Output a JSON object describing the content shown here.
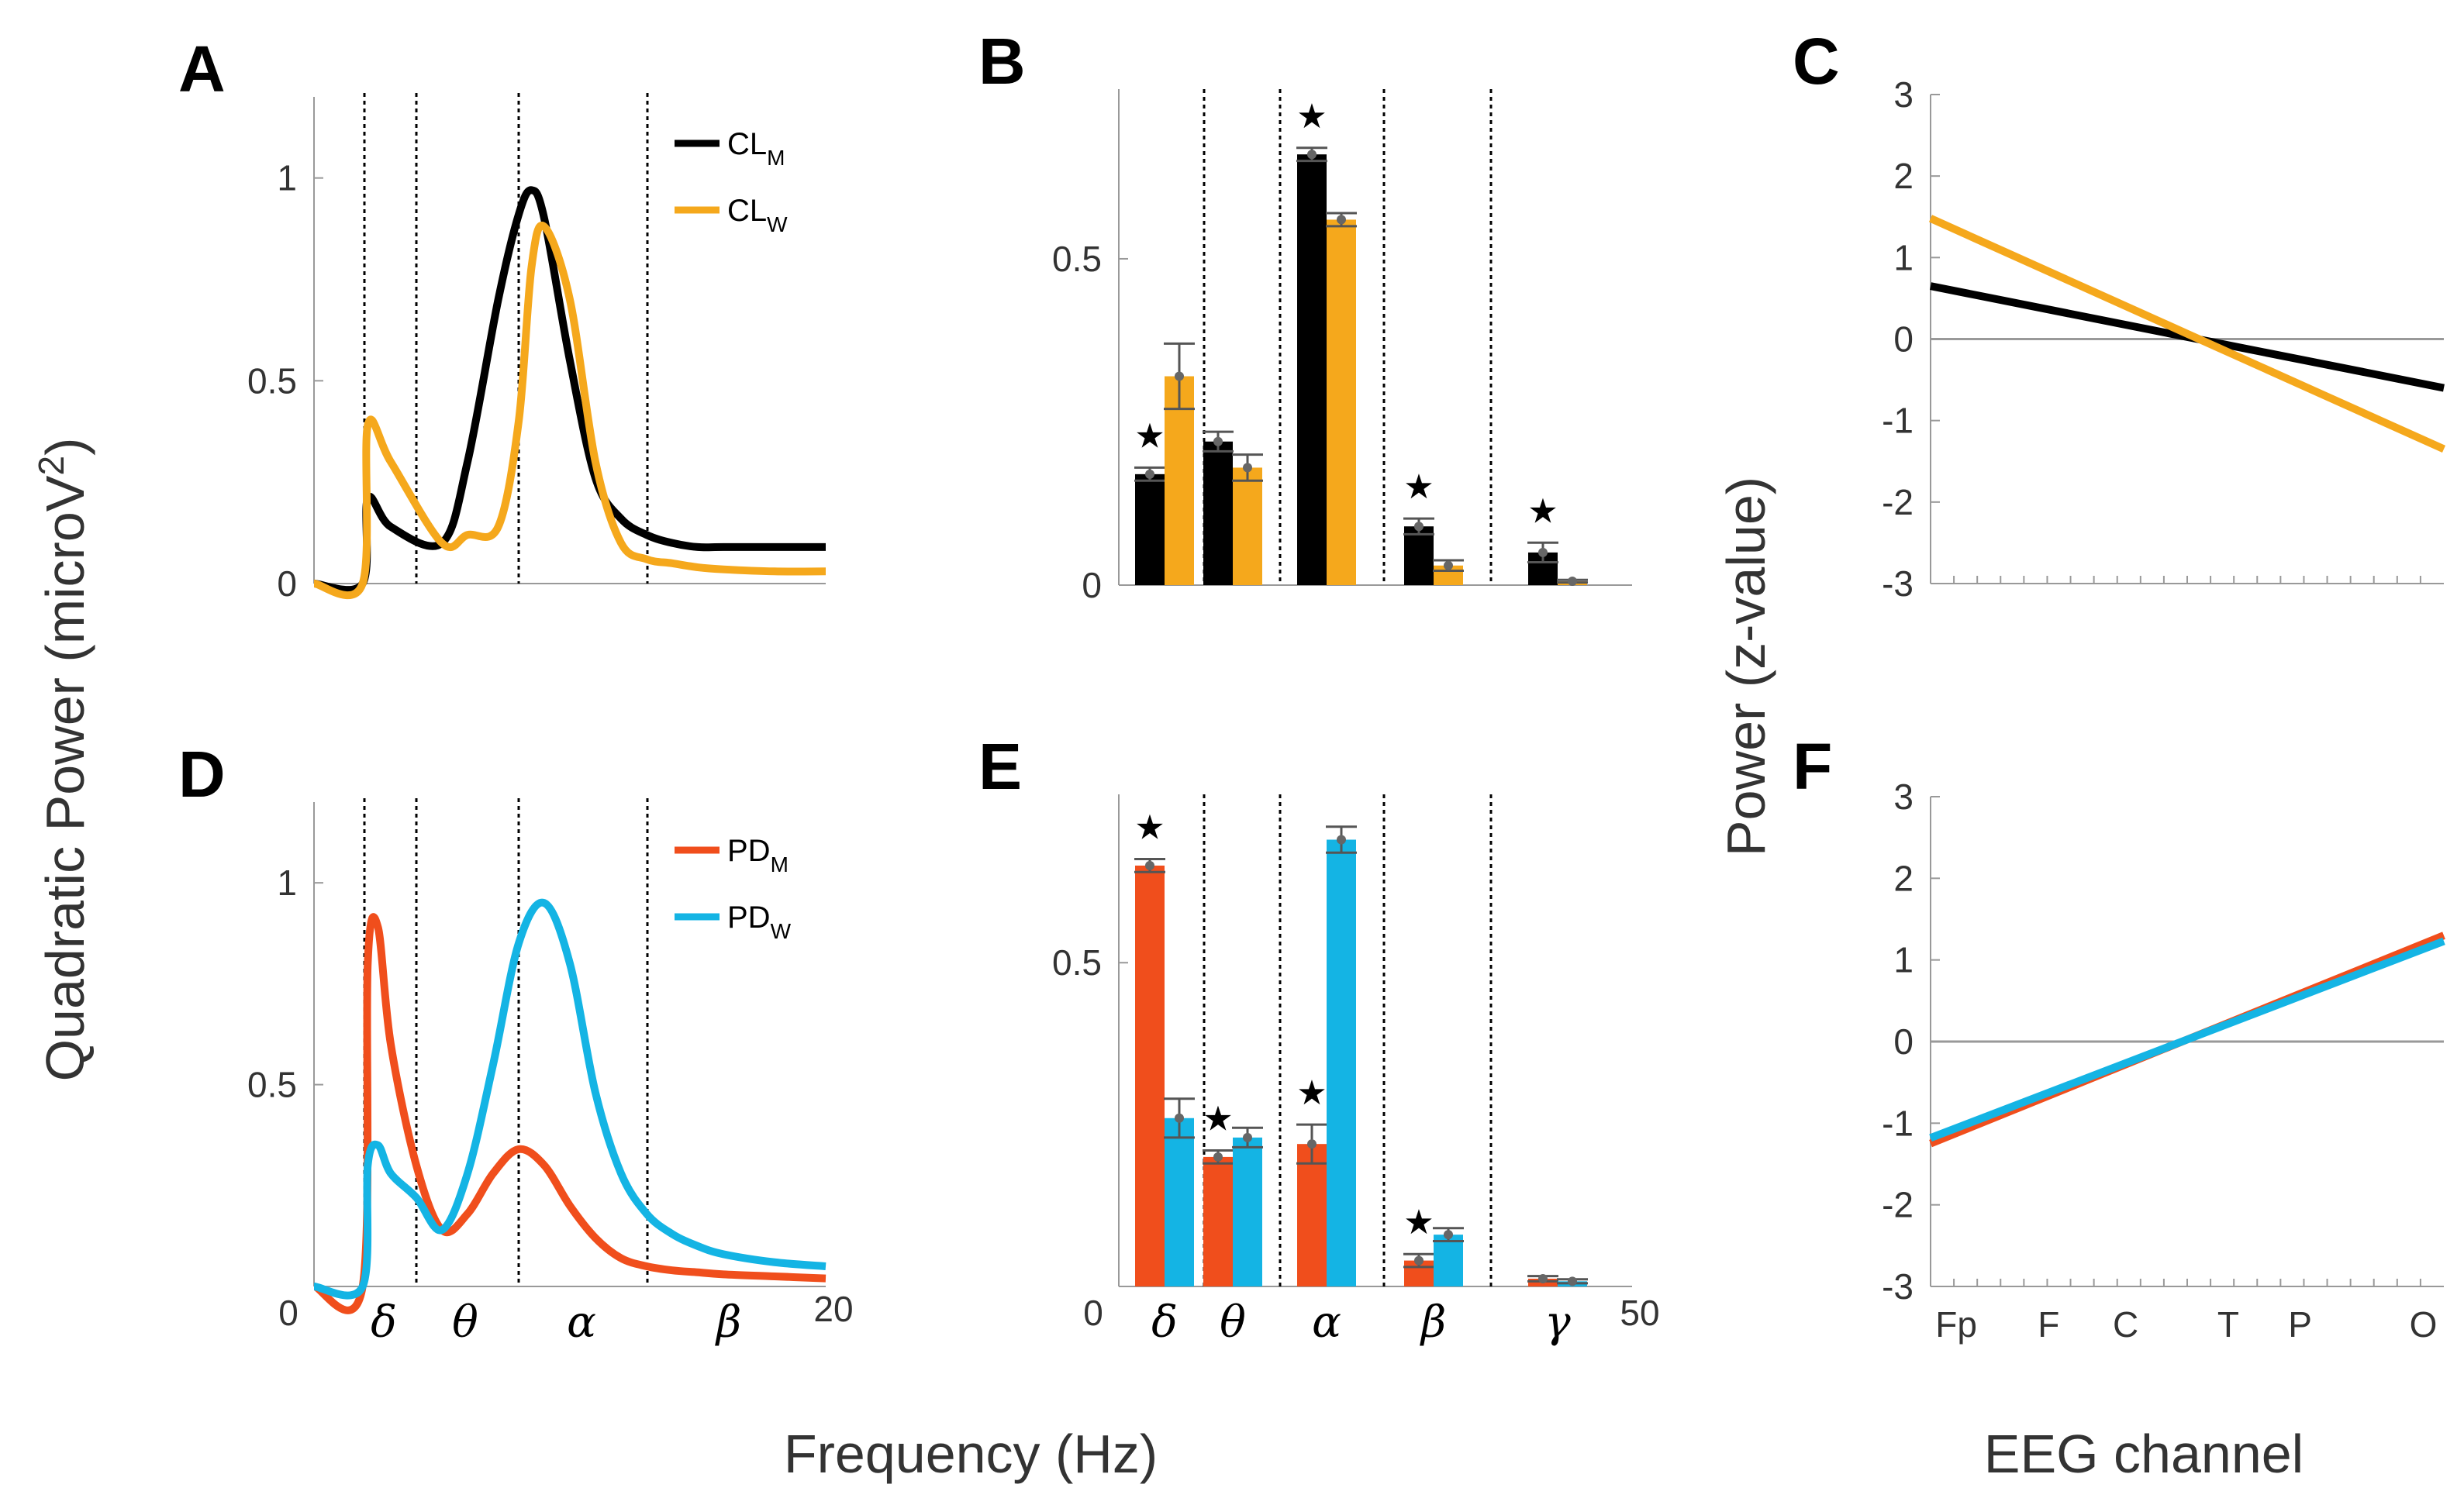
{
  "figure": {
    "panel_letters": [
      "A",
      "B",
      "C",
      "D",
      "E",
      "F"
    ],
    "ylabel_left": "Quadratic Power (microV",
    "ylabel_left_sup": "2",
    "ylabel_left_end": ")",
    "xlabel_frequency": "Frequency (Hz)",
    "ylabel_right": "Power (z-value)",
    "xlabel_channel": "EEG channel"
  },
  "chart_data": [
    {
      "id": "A",
      "type": "line",
      "title": "A",
      "xlabel": "",
      "ylabel": "Quadratic Power (microV^2)",
      "xlim": [
        0,
        20
      ],
      "ylim": [
        0,
        1.2
      ],
      "yticks": [
        "0",
        "0.5",
        "1"
      ],
      "ytick_values": [
        0,
        0.5,
        1
      ],
      "band_boundaries": [
        1,
        3,
        7,
        12
      ],
      "x": [
        0,
        1.9,
        2.1,
        3,
        5,
        6,
        7.2,
        8,
        8.5,
        9,
        10,
        11,
        12,
        13,
        14,
        15,
        16,
        18,
        20
      ],
      "series": [
        {
          "name": "CLM",
          "label": "CL",
          "sub": "M",
          "color": "#000000",
          "values": [
            0,
            0,
            0.21,
            0.14,
            0.1,
            0.3,
            0.7,
            0.91,
            0.97,
            0.9,
            0.55,
            0.26,
            0.16,
            0.12,
            0.1,
            0.09,
            0.09,
            0.09,
            0.09
          ]
        },
        {
          "name": "CLW",
          "label": "CL",
          "sub": "W",
          "color": "#f5a81c",
          "values": [
            0,
            0,
            0.39,
            0.3,
            0.1,
            0.12,
            0.14,
            0.4,
            0.78,
            0.88,
            0.7,
            0.3,
            0.1,
            0.06,
            0.05,
            0.04,
            0.035,
            0.03,
            0.03
          ]
        }
      ]
    },
    {
      "id": "B",
      "type": "bar",
      "title": "B",
      "ylim": [
        0,
        0.76
      ],
      "yticks": [
        "0",
        "0.5"
      ],
      "ytick_values": [
        0,
        0.5
      ],
      "categories": [
        "δ",
        "θ",
        "α",
        "β",
        "γ"
      ],
      "series": [
        {
          "name": "CLM",
          "color": "#000000",
          "values": [
            0.17,
            0.22,
            0.66,
            0.09,
            0.05
          ],
          "errors": [
            0.01,
            0.015,
            0.01,
            0.012,
            0.015
          ]
        },
        {
          "name": "CLW",
          "color": "#f5a81c",
          "values": [
            0.32,
            0.18,
            0.56,
            0.03,
            0.006
          ],
          "errors": [
            0.05,
            0.02,
            0.01,
            0.008,
            0.002
          ]
        }
      ],
      "significant": [
        true,
        false,
        true,
        true,
        true
      ],
      "significance_marker": "★"
    },
    {
      "id": "C",
      "type": "line",
      "title": "C",
      "xlabel": "EEG channel",
      "ylabel": "Power (z-value)",
      "xlim": [
        0,
        10
      ],
      "ylim": [
        -3,
        3
      ],
      "yticks": [
        "-3",
        "-2",
        "-1",
        "0",
        "1",
        "2",
        "3"
      ],
      "ytick_values": [
        -3,
        -2,
        -1,
        0,
        1,
        2,
        3
      ],
      "x": [
        0,
        10
      ],
      "series": [
        {
          "name": "CLM",
          "color": "#000000",
          "values": [
            0.65,
            -0.6
          ]
        },
        {
          "name": "CLW",
          "color": "#f5a81c",
          "values": [
            1.48,
            -1.35
          ]
        }
      ]
    },
    {
      "id": "D",
      "type": "line",
      "title": "D",
      "xlabel": "Frequency (Hz)",
      "xlim": [
        0,
        20
      ],
      "ylim": [
        0,
        1.2
      ],
      "yticks": [
        "0.5",
        "1"
      ],
      "ytick_values": [
        0.5,
        1
      ],
      "xtick_labels": [
        "0",
        "20"
      ],
      "band_labels": [
        "δ",
        "θ",
        "α",
        "β"
      ],
      "band_boundaries": [
        1,
        3,
        7,
        12
      ],
      "x": [
        0,
        1.9,
        2.1,
        2.5,
        3,
        4,
        5,
        6,
        7,
        8,
        9,
        10,
        11,
        12,
        13,
        14,
        15,
        16,
        18,
        20
      ],
      "series": [
        {
          "name": "PDM",
          "label": "PD",
          "sub": "M",
          "color": "#f04e1c",
          "values": [
            0,
            0,
            0.8,
            0.89,
            0.6,
            0.3,
            0.14,
            0.18,
            0.28,
            0.34,
            0.3,
            0.2,
            0.12,
            0.07,
            0.05,
            0.04,
            0.035,
            0.03,
            0.025,
            0.02
          ]
        },
        {
          "name": "PDW",
          "label": "PD",
          "sub": "W",
          "color": "#14b4e4",
          "values": [
            0,
            0,
            0.3,
            0.35,
            0.28,
            0.22,
            0.14,
            0.28,
            0.55,
            0.85,
            0.95,
            0.8,
            0.48,
            0.28,
            0.18,
            0.13,
            0.1,
            0.08,
            0.06,
            0.05
          ]
        }
      ]
    },
    {
      "id": "E",
      "type": "bar",
      "title": "E",
      "ylim": [
        0,
        0.76
      ],
      "yticks": [
        "0.5"
      ],
      "ytick_values": [
        0.5
      ],
      "xtick_labels": [
        "0",
        "50"
      ],
      "categories": [
        "δ",
        "θ",
        "α",
        "β",
        "γ"
      ],
      "series": [
        {
          "name": "PDM",
          "color": "#f04e1c",
          "values": [
            0.65,
            0.2,
            0.22,
            0.04,
            0.012
          ],
          "errors": [
            0.01,
            0.01,
            0.03,
            0.01,
            0.004
          ]
        },
        {
          "name": "PDW",
          "color": "#14b4e4",
          "values": [
            0.26,
            0.23,
            0.69,
            0.08,
            0.008
          ],
          "errors": [
            0.03,
            0.015,
            0.02,
            0.01,
            0.003
          ]
        }
      ],
      "significant": [
        true,
        true,
        true,
        true,
        false
      ],
      "significance_marker": "★"
    },
    {
      "id": "F",
      "type": "line",
      "title": "F",
      "xlabel": "EEG channel",
      "xlim": [
        0,
        10
      ],
      "ylim": [
        -3,
        3
      ],
      "yticks": [
        "-3",
        "-2",
        "-1",
        "0",
        "1",
        "2",
        "3"
      ],
      "ytick_values": [
        -3,
        -2,
        -1,
        0,
        1,
        2,
        3
      ],
      "xtick_labels": [
        "Fp",
        "F",
        "C",
        "T",
        "P",
        "O"
      ],
      "xtick_values": [
        0.5,
        2.3,
        3.8,
        5.8,
        7.2,
        9.6
      ],
      "x": [
        0,
        10
      ],
      "series": [
        {
          "name": "PDM",
          "color": "#f04e1c",
          "values": [
            -1.25,
            1.3
          ]
        },
        {
          "name": "PDW",
          "color": "#14b4e4",
          "values": [
            -1.18,
            1.23
          ]
        }
      ]
    }
  ]
}
